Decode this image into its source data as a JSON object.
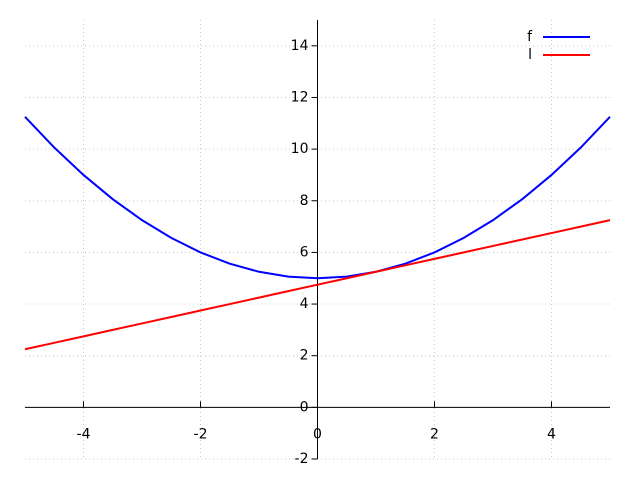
{
  "chart_data": {
    "type": "line",
    "x": [
      -5,
      -4.5,
      -4,
      -3.5,
      -3,
      -2.5,
      -2,
      -1.5,
      -1,
      -0.5,
      0,
      0.5,
      1,
      1.5,
      2,
      2.5,
      3,
      3.5,
      4,
      4.5,
      5
    ],
    "series": [
      {
        "name": "f",
        "color": "#0000ff",
        "values": [
          11.25,
          10.0625,
          9,
          8.0625,
          7.25,
          6.5625,
          6,
          5.5625,
          5.25,
          5.0625,
          5,
          5.0625,
          5.25,
          5.5625,
          6,
          6.5625,
          7.25,
          8.0625,
          9,
          10.0625,
          11.25
        ]
      },
      {
        "name": "l",
        "color": "#ff0000",
        "values": [
          2.25,
          2.5,
          2.75,
          3,
          3.25,
          3.5,
          3.75,
          4,
          4.25,
          4.5,
          4.75,
          5,
          5.25,
          5.5,
          5.75,
          6,
          6.25,
          6.5,
          6.75,
          7,
          7.25
        ]
      }
    ],
    "xlim": [
      -5,
      5
    ],
    "ylim": [
      -2,
      15
    ],
    "xticks": [
      -4,
      -2,
      0,
      2,
      4
    ],
    "yticks": [
      -2,
      0,
      2,
      4,
      6,
      8,
      10,
      12,
      14
    ],
    "grid": true,
    "legend": "top-right"
  }
}
